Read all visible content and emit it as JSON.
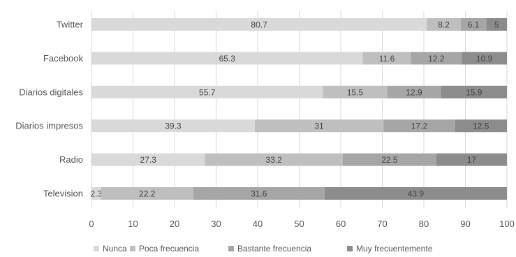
{
  "chart_data": {
    "type": "bar",
    "orientation": "horizontal",
    "stacked": true,
    "title": "",
    "xlabel": "",
    "ylabel": "",
    "xlim": [
      0,
      100
    ],
    "xticks": [
      0,
      10,
      20,
      30,
      40,
      50,
      60,
      70,
      80,
      90,
      100
    ],
    "grid": true,
    "legend_position": "bottom",
    "categories": [
      "Twitter",
      "Facebook",
      "Diarios digitales",
      "Diarios impresos",
      "Radio",
      "Television"
    ],
    "series": [
      {
        "name": "Nunca",
        "color": "#d9d9d9",
        "values": [
          80.7,
          65.3,
          55.7,
          39.3,
          27.3,
          2.3
        ]
      },
      {
        "name": "Poca frecuencia",
        "color": "#bfbfbf",
        "values": [
          8.2,
          11.6,
          15.5,
          31,
          33.2,
          22.2
        ]
      },
      {
        "name": "Bastante frecuencia",
        "color": "#a6a6a6",
        "values": [
          6.1,
          12.2,
          12.9,
          17.2,
          22.5,
          31.6
        ]
      },
      {
        "name": "Muy frecuentemente",
        "color": "#8c8c8c",
        "values": [
          5,
          10.9,
          15.9,
          12.5,
          17,
          43.9
        ]
      }
    ]
  }
}
